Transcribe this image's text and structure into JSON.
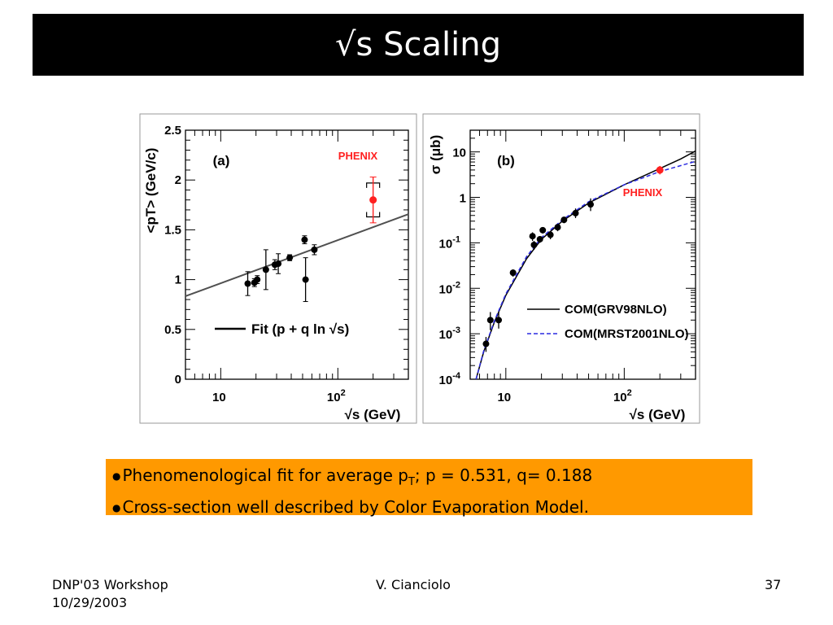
{
  "slide": {
    "title": "√s Scaling",
    "bullets": [
      {
        "pre": "Phenomenological fit for average p",
        "sub": "T",
        "post": "; p = 0.531, q= 0.188"
      },
      {
        "pre": "Cross-section well described by Color Evaporation Model.",
        "sub": "",
        "post": ""
      }
    ],
    "footer": {
      "left_line1": "DNP'03 Workshop",
      "left_line2": "10/29/2003",
      "center": "V. Cianciolo",
      "page": "37"
    }
  },
  "colors": {
    "title_bg": "#000000",
    "bullet_bg": "#ff9900",
    "phenix": "#ff2020",
    "mrst": "#2a2ae0"
  },
  "chart_data": [
    {
      "type": "scatter",
      "panel_label": "(a)",
      "xlabel": "√s (GeV)",
      "ylabel": "<pT> (GeV/c)",
      "xscale": "log",
      "xlim": [
        5,
        400
      ],
      "ylim": [
        0,
        2.5
      ],
      "x_ticks": [
        {
          "v": 10,
          "label": "10"
        },
        {
          "v": 100,
          "label": "10",
          "sup": "2"
        }
      ],
      "y_ticks": [
        0,
        0.5,
        1,
        1.5,
        2,
        2.5
      ],
      "y_tick_labels": [
        "0",
        "0.5",
        "1",
        "1.5",
        "2",
        "2.5"
      ],
      "phenix_label": "PHENIX",
      "legend": [
        {
          "label": "Fit (p + q ln √s)",
          "style": "solid-black"
        }
      ],
      "fit": {
        "p": 0.531,
        "q": 0.188
      },
      "series": [
        {
          "points": [
            {
              "x": 17,
              "y": 0.96,
              "err": 0.12
            },
            {
              "x": 19.4,
              "y": 0.97,
              "err": 0.04
            },
            {
              "x": 20.5,
              "y": 1.0,
              "err": 0.04
            },
            {
              "x": 24.3,
              "y": 1.1,
              "err": 0.2
            },
            {
              "x": 29,
              "y": 1.15,
              "err": 0.05
            },
            {
              "x": 31,
              "y": 1.16,
              "err": 0.1
            },
            {
              "x": 38.8,
              "y": 1.22,
              "err": 0.03
            },
            {
              "x": 52,
              "y": 1.4,
              "err": 0.04
            },
            {
              "x": 53,
              "y": 1.0,
              "err": 0.22
            },
            {
              "x": 63,
              "y": 1.3,
              "err": 0.05
            }
          ]
        },
        {
          "points": [
            {
              "x": 200,
              "y": 1.8,
              "err": 0.23,
              "sys": 0.17
            }
          ]
        }
      ]
    },
    {
      "type": "scatter",
      "panel_label": "(b)",
      "xlabel": "√s (GeV)",
      "ylabel": "σ (μb)",
      "xscale": "log",
      "yscale": "log",
      "xlim": [
        5,
        400
      ],
      "ylim": [
        0.0001,
        30
      ],
      "x_ticks": [
        {
          "v": 10,
          "label": "10"
        },
        {
          "v": 100,
          "label": "10",
          "sup": "2"
        }
      ],
      "y_ticks": [
        {
          "v": 10,
          "label": "10",
          "sup": ""
        },
        {
          "v": 1,
          "label": "1",
          "sup": ""
        },
        {
          "v": 0.1,
          "label": "10",
          "sup": "-1"
        },
        {
          "v": 0.01,
          "label": "10",
          "sup": "-2"
        },
        {
          "v": 0.001,
          "label": "10",
          "sup": "-3"
        },
        {
          "v": 0.0001,
          "label": "10",
          "sup": "-4"
        }
      ],
      "phenix_label": "PHENIX",
      "legend": [
        {
          "label": "COM(GRV98NLO)",
          "style": "solid-black"
        },
        {
          "label": "COM(MRST2001NLO)",
          "style": "dashed-blue"
        }
      ],
      "series": [
        {
          "points": [
            {
              "x": 6.8,
              "y": 0.0006,
              "err_up": 0.00025,
              "err_dn": 0.0002
            },
            {
              "x": 7.4,
              "y": 0.002,
              "err_up": 0.001,
              "err_dn": 0.0008
            },
            {
              "x": 8.7,
              "y": 0.002,
              "err_up": 0.001,
              "err_dn": 0.0007
            },
            {
              "x": 11.5,
              "y": 0.022,
              "err_up": 0.004,
              "err_dn": 0.004
            },
            {
              "x": 16.8,
              "y": 0.14,
              "err_up": 0.03,
              "err_dn": 0.03
            },
            {
              "x": 17.3,
              "y": 0.09,
              "err_up": 0.02,
              "err_dn": 0.02
            },
            {
              "x": 19.4,
              "y": 0.12,
              "err_up": 0.02,
              "err_dn": 0.02
            },
            {
              "x": 20.5,
              "y": 0.19,
              "err_up": 0.03,
              "err_dn": 0.03
            },
            {
              "x": 23.8,
              "y": 0.15,
              "err_up": 0.03,
              "err_dn": 0.03
            },
            {
              "x": 27.4,
              "y": 0.22,
              "err_up": 0.04,
              "err_dn": 0.04
            },
            {
              "x": 31,
              "y": 0.32,
              "err_up": 0.05,
              "err_dn": 0.05
            },
            {
              "x": 38.8,
              "y": 0.45,
              "err_up": 0.12,
              "err_dn": 0.1
            },
            {
              "x": 52,
              "y": 0.7,
              "err_up": 0.25,
              "err_dn": 0.2
            }
          ]
        },
        {
          "points": [
            {
              "x": 200,
              "y": 4.0,
              "err_up": 0.9,
              "err_dn": 0.8
            }
          ]
        }
      ],
      "curves": {
        "grv98": {
          "x": [
            5.6,
            6.5,
            8,
            10,
            15,
            20,
            30,
            50,
            100,
            200,
            300,
            400
          ],
          "y": [
            0.0001,
            0.0004,
            0.0018,
            0.007,
            0.045,
            0.12,
            0.3,
            0.75,
            1.9,
            4.3,
            7.0,
            10.5
          ]
        },
        "mrst": {
          "x": [
            5.6,
            6.5,
            8,
            10,
            15,
            20,
            30,
            50,
            100,
            200,
            300,
            400
          ],
          "y": [
            0.0001,
            0.00042,
            0.0019,
            0.0075,
            0.05,
            0.13,
            0.32,
            0.8,
            1.9,
            3.7,
            5.0,
            6.2
          ]
        }
      }
    }
  ]
}
